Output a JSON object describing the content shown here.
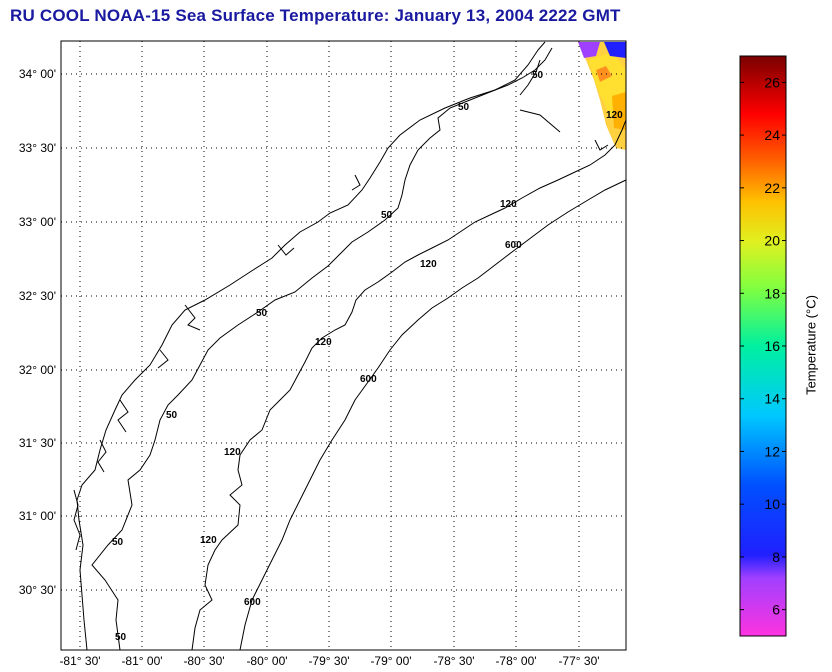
{
  "title": "RU COOL  NOAA-15  Sea Surface Temperature:  January 13, 2004 2222 GMT",
  "lat_ticks": [
    "34° 00'",
    "33° 30'",
    "33° 00'",
    "32° 30'",
    "32° 00'",
    "31° 30'",
    "31° 00'",
    "30° 30'"
  ],
  "lon_ticks": [
    "-81° 30'",
    "-81° 00'",
    "-80° 30'",
    "-80° 00'",
    "-79° 30'",
    "-79° 00'",
    "-78° 30'",
    "-78° 00'",
    "-77° 30'"
  ],
  "isobath_labels": {
    "ne50": "50",
    "n50": "50",
    "ne120": "120",
    "c50a": "50",
    "c120a": "120",
    "c600a": "600",
    "c50b": "50",
    "c120b": "120",
    "c600b": "600",
    "s50a": "50",
    "s120a": "120",
    "s50b": "50",
    "s120b": "120",
    "s600": "600",
    "s50c": "50",
    "s120c": "120"
  },
  "colorbar": {
    "label": "Temperature (°C)",
    "ticks": [
      "6",
      "8",
      "10",
      "12",
      "14",
      "16",
      "18",
      "20",
      "22",
      "24",
      "26"
    ],
    "range": [
      5,
      27
    ]
  },
  "colors": {
    "title": "#1a1aa0",
    "grid": "#000000"
  }
}
